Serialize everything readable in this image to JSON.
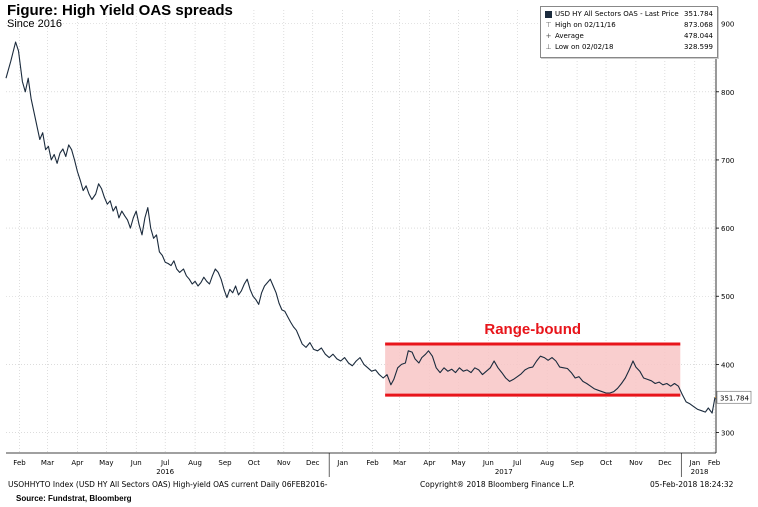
{
  "header": {
    "title": "Figure: High Yield OAS spreads",
    "subtitle": "Since 2016"
  },
  "legend": {
    "rows": [
      {
        "icon": "series-square-icon",
        "label": "USD HY All Sectors OAS - Last Price",
        "value": "351.784"
      },
      {
        "icon": "high-marker-icon",
        "label": "High on 02/11/16",
        "value": "873.068"
      },
      {
        "icon": "average-marker-icon",
        "label": "Average",
        "value": "478.044"
      },
      {
        "icon": "low-marker-icon",
        "label": "Low on 02/02/18",
        "value": "328.599"
      }
    ]
  },
  "annotation": {
    "label": "Range-bound",
    "color": "#e8151b",
    "fill": "#f8c6c6",
    "x_start": "2017-02-28",
    "x_end": "2017-12-31",
    "y_top": 430,
    "y_bottom": 355
  },
  "last_price_tag": "351.784",
  "footer": {
    "left": "USOHHYTO Index (USD HY All Sectors OAS) High-yield OAS current  Daily 06FEB2016-",
    "center": "Copyright® 2018 Bloomberg Finance L.P.",
    "right": "05-Feb-2018 18:24:32",
    "source": "Source: Fundstrat, Bloomberg"
  },
  "colors": {
    "line": "#1b2b3d",
    "last_tag": "#e8a33a",
    "grid": "#c8c8c8"
  },
  "chart_data": {
    "type": "line",
    "title": "Figure: High Yield OAS spreads",
    "subtitle": "Since 2016",
    "xlabel": "",
    "ylabel": "",
    "y_axis_position": "right",
    "ylim": [
      270,
      920
    ],
    "xlim": [
      "2016-02-01",
      "2018-02-06"
    ],
    "y_ticks": [
      300,
      400,
      500,
      600,
      700,
      800,
      900
    ],
    "x_ticks": [
      {
        "label": "Feb",
        "date": "2016-02-15"
      },
      {
        "label": "Mar",
        "date": "2016-03-15"
      },
      {
        "label": "Apr",
        "date": "2016-04-15"
      },
      {
        "label": "May",
        "date": "2016-05-15"
      },
      {
        "label": "Jun",
        "date": "2016-06-15"
      },
      {
        "label": "Jul",
        "date": "2016-07-15"
      },
      {
        "label": "Aug",
        "date": "2016-08-15"
      },
      {
        "label": "Sep",
        "date": "2016-09-15"
      },
      {
        "label": "Oct",
        "date": "2016-10-15"
      },
      {
        "label": "Nov",
        "date": "2016-11-15"
      },
      {
        "label": "Dec",
        "date": "2016-12-15"
      },
      {
        "label": "Jan",
        "date": "2017-01-15"
      },
      {
        "label": "Feb",
        "date": "2017-02-15"
      },
      {
        "label": "Mar",
        "date": "2017-03-15"
      },
      {
        "label": "Apr",
        "date": "2017-04-15"
      },
      {
        "label": "May",
        "date": "2017-05-15"
      },
      {
        "label": "Jun",
        "date": "2017-06-15"
      },
      {
        "label": "Jul",
        "date": "2017-07-15"
      },
      {
        "label": "Aug",
        "date": "2017-08-15"
      },
      {
        "label": "Sep",
        "date": "2017-09-15"
      },
      {
        "label": "Oct",
        "date": "2017-10-15"
      },
      {
        "label": "Nov",
        "date": "2017-11-15"
      },
      {
        "label": "Dec",
        "date": "2017-12-15"
      },
      {
        "label": "Jan",
        "date": "2018-01-15"
      },
      {
        "label": "Feb",
        "date": "2018-02-04"
      }
    ],
    "year_labels": [
      {
        "label": "2016",
        "date": "2016-07-15"
      },
      {
        "label": "2017",
        "date": "2017-07-01"
      },
      {
        "label": "2018",
        "date": "2018-01-20"
      }
    ],
    "year_separators": [
      "2017-01-01",
      "2018-01-01"
    ],
    "grid": true,
    "legend_position": "top-right",
    "series": [
      {
        "name": "USD HY All Sectors OAS",
        "points": [
          [
            "2016-02-01",
            820
          ],
          [
            "2016-02-06",
            845
          ],
          [
            "2016-02-11",
            873
          ],
          [
            "2016-02-14",
            860
          ],
          [
            "2016-02-18",
            815
          ],
          [
            "2016-02-21",
            800
          ],
          [
            "2016-02-24",
            820
          ],
          [
            "2016-02-27",
            790
          ],
          [
            "2016-03-01",
            770
          ],
          [
            "2016-03-04",
            750
          ],
          [
            "2016-03-07",
            730
          ],
          [
            "2016-03-10",
            740
          ],
          [
            "2016-03-13",
            715
          ],
          [
            "2016-03-16",
            720
          ],
          [
            "2016-03-19",
            700
          ],
          [
            "2016-03-22",
            708
          ],
          [
            "2016-03-25",
            695
          ],
          [
            "2016-03-28",
            710
          ],
          [
            "2016-03-31",
            716
          ],
          [
            "2016-04-03",
            705
          ],
          [
            "2016-04-06",
            722
          ],
          [
            "2016-04-09",
            715
          ],
          [
            "2016-04-12",
            700
          ],
          [
            "2016-04-15",
            683
          ],
          [
            "2016-04-18",
            670
          ],
          [
            "2016-04-21",
            655
          ],
          [
            "2016-04-24",
            662
          ],
          [
            "2016-04-27",
            650
          ],
          [
            "2016-04-30",
            642
          ],
          [
            "2016-05-04",
            650
          ],
          [
            "2016-05-07",
            665
          ],
          [
            "2016-05-10",
            658
          ],
          [
            "2016-05-13",
            645
          ],
          [
            "2016-05-16",
            635
          ],
          [
            "2016-05-19",
            640
          ],
          [
            "2016-05-22",
            625
          ],
          [
            "2016-05-25",
            632
          ],
          [
            "2016-05-28",
            615
          ],
          [
            "2016-05-31",
            625
          ],
          [
            "2016-06-03",
            618
          ],
          [
            "2016-06-06",
            612
          ],
          [
            "2016-06-09",
            600
          ],
          [
            "2016-06-12",
            615
          ],
          [
            "2016-06-15",
            625
          ],
          [
            "2016-06-18",
            605
          ],
          [
            "2016-06-21",
            590
          ],
          [
            "2016-06-24",
            615
          ],
          [
            "2016-06-27",
            630
          ],
          [
            "2016-06-30",
            600
          ],
          [
            "2016-07-03",
            585
          ],
          [
            "2016-07-06",
            590
          ],
          [
            "2016-07-09",
            565
          ],
          [
            "2016-07-12",
            560
          ],
          [
            "2016-07-15",
            550
          ],
          [
            "2016-07-18",
            548
          ],
          [
            "2016-07-21",
            545
          ],
          [
            "2016-07-24",
            552
          ],
          [
            "2016-07-27",
            540
          ],
          [
            "2016-07-30",
            535
          ],
          [
            "2016-08-03",
            540
          ],
          [
            "2016-08-06",
            530
          ],
          [
            "2016-08-09",
            525
          ],
          [
            "2016-08-12",
            518
          ],
          [
            "2016-08-15",
            522
          ],
          [
            "2016-08-18",
            515
          ],
          [
            "2016-08-21",
            520
          ],
          [
            "2016-08-24",
            528
          ],
          [
            "2016-08-27",
            522
          ],
          [
            "2016-08-30",
            518
          ],
          [
            "2016-09-02",
            530
          ],
          [
            "2016-09-05",
            540
          ],
          [
            "2016-09-08",
            535
          ],
          [
            "2016-09-11",
            525
          ],
          [
            "2016-09-14",
            510
          ],
          [
            "2016-09-17",
            498
          ],
          [
            "2016-09-20",
            510
          ],
          [
            "2016-09-23",
            505
          ],
          [
            "2016-09-26",
            515
          ],
          [
            "2016-09-29",
            502
          ],
          [
            "2016-10-02",
            508
          ],
          [
            "2016-10-05",
            518
          ],
          [
            "2016-10-08",
            525
          ],
          [
            "2016-10-11",
            510
          ],
          [
            "2016-10-14",
            500
          ],
          [
            "2016-10-17",
            495
          ],
          [
            "2016-10-20",
            488
          ],
          [
            "2016-10-23",
            505
          ],
          [
            "2016-10-26",
            515
          ],
          [
            "2016-10-29",
            520
          ],
          [
            "2016-11-01",
            525
          ],
          [
            "2016-11-04",
            515
          ],
          [
            "2016-11-07",
            505
          ],
          [
            "2016-11-10",
            490
          ],
          [
            "2016-11-13",
            480
          ],
          [
            "2016-11-16",
            478
          ],
          [
            "2016-11-19",
            470
          ],
          [
            "2016-11-22",
            462
          ],
          [
            "2016-11-25",
            455
          ],
          [
            "2016-11-28",
            450
          ],
          [
            "2016-12-01",
            440
          ],
          [
            "2016-12-04",
            430
          ],
          [
            "2016-12-08",
            425
          ],
          [
            "2016-12-12",
            432
          ],
          [
            "2016-12-16",
            422
          ],
          [
            "2016-12-20",
            420
          ],
          [
            "2016-12-24",
            424
          ],
          [
            "2016-12-28",
            415
          ],
          [
            "2017-01-01",
            410
          ],
          [
            "2017-01-05",
            415
          ],
          [
            "2017-01-09",
            408
          ],
          [
            "2017-01-13",
            405
          ],
          [
            "2017-01-17",
            410
          ],
          [
            "2017-01-21",
            402
          ],
          [
            "2017-01-25",
            398
          ],
          [
            "2017-01-29",
            405
          ],
          [
            "2017-02-02",
            410
          ],
          [
            "2017-02-06",
            400
          ],
          [
            "2017-02-10",
            395
          ],
          [
            "2017-02-14",
            390
          ],
          [
            "2017-02-18",
            392
          ],
          [
            "2017-02-22",
            385
          ],
          [
            "2017-02-26",
            380
          ],
          [
            "2017-03-02",
            385
          ],
          [
            "2017-03-06",
            370
          ],
          [
            "2017-03-09",
            378
          ],
          [
            "2017-03-13",
            395
          ],
          [
            "2017-03-17",
            400
          ],
          [
            "2017-03-21",
            402
          ],
          [
            "2017-03-24",
            420
          ],
          [
            "2017-03-28",
            418
          ],
          [
            "2017-03-31",
            408
          ],
          [
            "2017-04-04",
            402
          ],
          [
            "2017-04-07",
            410
          ],
          [
            "2017-04-11",
            415
          ],
          [
            "2017-04-14",
            420
          ],
          [
            "2017-04-18",
            412
          ],
          [
            "2017-04-22",
            395
          ],
          [
            "2017-04-26",
            388
          ],
          [
            "2017-04-30",
            395
          ],
          [
            "2017-05-04",
            390
          ],
          [
            "2017-05-08",
            393
          ],
          [
            "2017-05-12",
            388
          ],
          [
            "2017-05-16",
            395
          ],
          [
            "2017-05-20",
            390
          ],
          [
            "2017-05-24",
            392
          ],
          [
            "2017-05-28",
            388
          ],
          [
            "2017-06-01",
            395
          ],
          [
            "2017-06-05",
            392
          ],
          [
            "2017-06-09",
            385
          ],
          [
            "2017-06-13",
            390
          ],
          [
            "2017-06-17",
            395
          ],
          [
            "2017-06-21",
            405
          ],
          [
            "2017-06-25",
            395
          ],
          [
            "2017-06-29",
            388
          ],
          [
            "2017-07-03",
            380
          ],
          [
            "2017-07-07",
            375
          ],
          [
            "2017-07-11",
            378
          ],
          [
            "2017-07-15",
            382
          ],
          [
            "2017-07-19",
            386
          ],
          [
            "2017-07-23",
            392
          ],
          [
            "2017-07-27",
            395
          ],
          [
            "2017-07-31",
            396
          ],
          [
            "2017-08-04",
            405
          ],
          [
            "2017-08-08",
            412
          ],
          [
            "2017-08-12",
            410
          ],
          [
            "2017-08-16",
            406
          ],
          [
            "2017-08-20",
            410
          ],
          [
            "2017-08-24",
            405
          ],
          [
            "2017-08-28",
            396
          ],
          [
            "2017-09-01",
            395
          ],
          [
            "2017-09-05",
            394
          ],
          [
            "2017-09-09",
            388
          ],
          [
            "2017-09-13",
            380
          ],
          [
            "2017-09-17",
            382
          ],
          [
            "2017-09-21",
            375
          ],
          [
            "2017-09-25",
            372
          ],
          [
            "2017-09-29",
            368
          ],
          [
            "2017-10-03",
            364
          ],
          [
            "2017-10-07",
            362
          ],
          [
            "2017-10-11",
            360
          ],
          [
            "2017-10-15",
            358
          ],
          [
            "2017-10-19",
            358
          ],
          [
            "2017-10-23",
            360
          ],
          [
            "2017-10-27",
            365
          ],
          [
            "2017-10-31",
            372
          ],
          [
            "2017-11-04",
            380
          ],
          [
            "2017-11-08",
            392
          ],
          [
            "2017-11-12",
            405
          ],
          [
            "2017-11-15",
            396
          ],
          [
            "2017-11-19",
            390
          ],
          [
            "2017-11-23",
            380
          ],
          [
            "2017-11-27",
            378
          ],
          [
            "2017-12-01",
            376
          ],
          [
            "2017-12-05",
            372
          ],
          [
            "2017-12-09",
            374
          ],
          [
            "2017-12-13",
            370
          ],
          [
            "2017-12-17",
            372
          ],
          [
            "2017-12-21",
            368
          ],
          [
            "2017-12-25",
            372
          ],
          [
            "2017-12-29",
            368
          ],
          [
            "2018-01-02",
            356
          ],
          [
            "2018-01-06",
            345
          ],
          [
            "2018-01-10",
            342
          ],
          [
            "2018-01-14",
            338
          ],
          [
            "2018-01-18",
            334
          ],
          [
            "2018-01-22",
            332
          ],
          [
            "2018-01-26",
            330
          ],
          [
            "2018-01-29",
            336
          ],
          [
            "2018-02-02",
            328.6
          ],
          [
            "2018-02-05",
            351.8
          ]
        ]
      }
    ]
  }
}
